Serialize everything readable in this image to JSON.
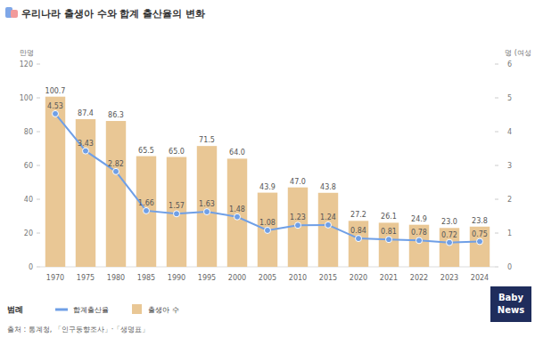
{
  "chart_data": {
    "type": "bar",
    "title": "우리나라 출생아 수와 합계 출산율의 변화",
    "y_label": "만명",
    "y2_label": "명 (여성",
    "legend_title": "범례",
    "source": "출처 : 통계청, 「인구동향조사」·「생명표」",
    "logo": "Baby News",
    "categories": [
      "1970",
      "1975",
      "1980",
      "1985",
      "1990",
      "1995",
      "2000",
      "2005",
      "2010",
      "2015",
      "2020",
      "2021",
      "2022",
      "2023",
      "2024"
    ],
    "series": [
      {
        "name": "합계출산율",
        "type": "line",
        "axis": "y2",
        "color": "#6f9fe6",
        "marker": "circle",
        "values": [
          4.53,
          3.43,
          2.82,
          1.66,
          1.57,
          1.63,
          1.48,
          1.08,
          1.23,
          1.24,
          0.84,
          0.81,
          0.78,
          0.72,
          0.75
        ]
      },
      {
        "name": "출생아 수",
        "type": "bar",
        "color": "#e9c795",
        "values": [
          100.7,
          87.4,
          86.3,
          65.5,
          65.0,
          71.5,
          64.0,
          43.9,
          47.0,
          43.8,
          27.2,
          26.1,
          24.9,
          23.0,
          23.8
        ],
        "value_labels": [
          "100.7",
          "87.4",
          "86.3",
          "65.5",
          "65.0",
          "71.5",
          "64.0",
          "43.9",
          "47.0",
          "43.8",
          "27.2",
          "26.1",
          "24.9",
          "23.0",
          "23.8"
        ]
      }
    ],
    "ylim": [
      0,
      120
    ],
    "yticks": [
      0,
      20,
      40,
      60,
      80,
      100,
      120
    ],
    "y2lim": [
      0,
      6
    ],
    "y2ticks": [
      0,
      1,
      2,
      3,
      4,
      5,
      6
    ],
    "grid": false,
    "data_labels": true,
    "legend": "bottom"
  }
}
